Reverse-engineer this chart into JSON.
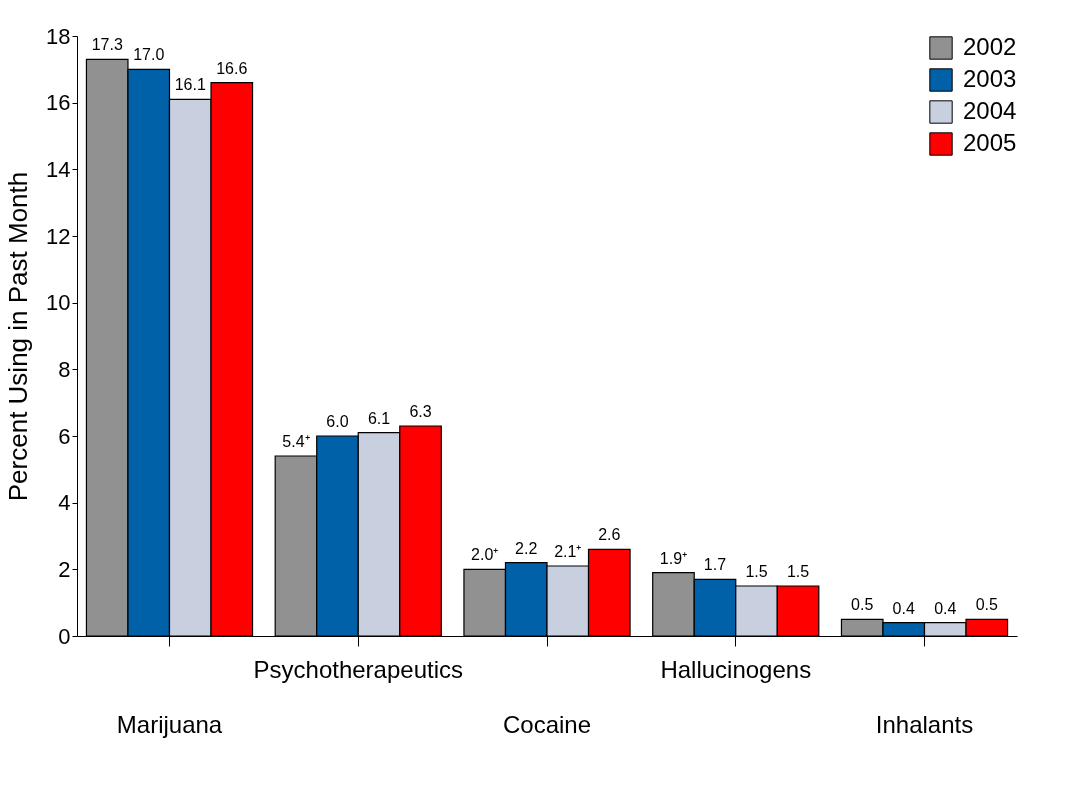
{
  "chart_data": {
    "type": "bar",
    "ylabel": "Percent Using in Past Month",
    "categories": [
      "Marijuana",
      "Psychotherapeutics",
      "Cocaine",
      "Hallucinogens",
      "Inhalants"
    ],
    "series": [
      {
        "name": "2002",
        "color": "#919191",
        "values": [
          17.3,
          5.4,
          2.0,
          1.9,
          0.5
        ],
        "value_labels": [
          "17.3",
          "5.4⁺",
          "2.0⁺",
          "1.9⁺",
          "0.5"
        ]
      },
      {
        "name": "2003",
        "color": "#0060a8",
        "values": [
          17.0,
          6.0,
          2.2,
          1.7,
          0.4
        ],
        "value_labels": [
          "17.0",
          "6.0",
          "2.2",
          "1.7",
          "0.4"
        ]
      },
      {
        "name": "2004",
        "color": "#c8d0e0",
        "values": [
          16.1,
          6.1,
          2.1,
          1.5,
          0.4
        ],
        "value_labels": [
          "16.1",
          "6.1",
          "2.1⁺",
          "1.5",
          "0.4"
        ]
      },
      {
        "name": "2005",
        "color": "#ff0000",
        "values": [
          16.6,
          6.3,
          2.6,
          1.5,
          0.5
        ],
        "value_labels": [
          "16.6",
          "6.3",
          "2.6",
          "1.5",
          "0.5"
        ]
      }
    ],
    "ylim": [
      0,
      18
    ],
    "yticks": [
      0,
      2,
      4,
      6,
      8,
      10,
      12,
      14,
      16,
      18
    ],
    "grid": false,
    "legend": "top right"
  }
}
